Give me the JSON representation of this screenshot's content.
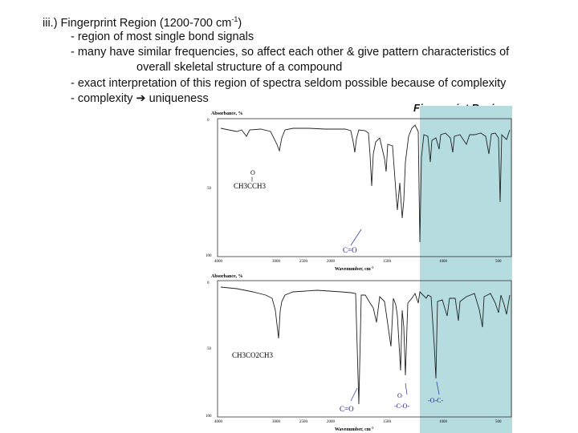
{
  "slide": {
    "heading_prefix": "iii.) Fingerprint Region (1200-700 cm",
    "heading_sup": "-1",
    "heading_suffix": ")",
    "bullet_1": "- region of most single bond signals",
    "bullet_2": "- many have similar frequencies, so affect each other & give pattern characteristics of",
    "bullet_2_cont": "overall skeletal structure of a compound",
    "bullet_3": "- exact interpretation of this region of spectra seldom possible because of complexity",
    "bullet_4_prefix": "- complexity",
    "bullet_4_arrow": "➔",
    "bullet_4_suffix": "uniqueness",
    "fingerprint_label": "Fingerprint Region"
  },
  "spectra": {
    "region_color": "#b5dde0",
    "top": {
      "ylabel": "Absorbance, %",
      "y_ticks": [
        "0",
        "50",
        "100"
      ],
      "x_ticks": [
        "4000",
        "3000",
        "2500",
        "2000",
        "1500",
        "1000",
        "500"
      ],
      "xlabel": "Wavenumber, cm",
      "xlabel_sup": "-1",
      "molecule_top": "O",
      "molecule_bar": "||",
      "molecule": "CH3CCH3",
      "annotation": "C=O"
    },
    "bottom": {
      "ylabel": "Absorbance, %",
      "y_ticks": [
        "0",
        "50",
        "100"
      ],
      "x_ticks": [
        "4000",
        "3000",
        "2500",
        "2000",
        "1500",
        "1000",
        "500"
      ],
      "xlabel": "Wavenumber, cm",
      "xlabel_sup": "-1",
      "molecule": "CH3CO2CH3",
      "annotation_1": "C=O",
      "annotation_2_top": "O",
      "annotation_2": "-C-O-",
      "annotation_3": "-O-C-"
    }
  }
}
